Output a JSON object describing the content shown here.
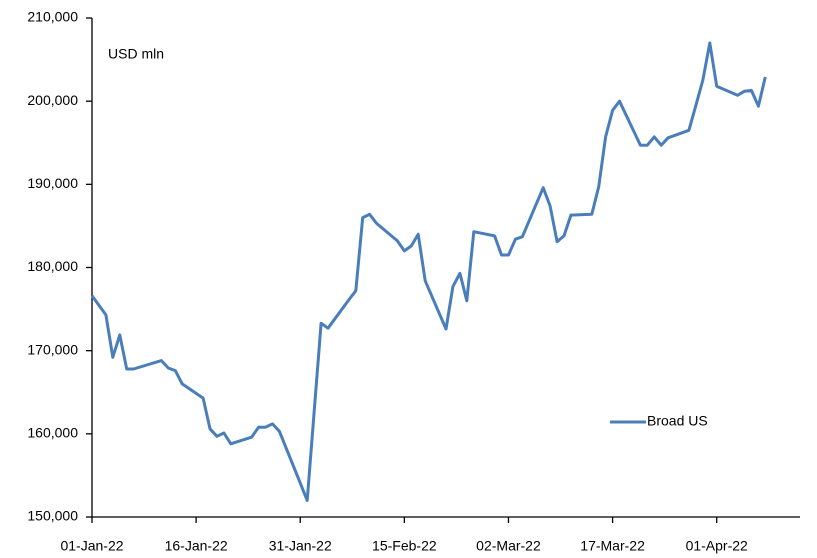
{
  "chart_data": {
    "type": "line",
    "annotations": [
      "USD mln"
    ],
    "x": [
      "01-Jan-22",
      "03-Jan-22",
      "04-Jan-22",
      "05-Jan-22",
      "06-Jan-22",
      "07-Jan-22",
      "11-Jan-22",
      "12-Jan-22",
      "13-Jan-22",
      "14-Jan-22",
      "17-Jan-22",
      "18-Jan-22",
      "19-Jan-22",
      "20-Jan-22",
      "21-Jan-22",
      "24-Jan-22",
      "25-Jan-22",
      "26-Jan-22",
      "27-Jan-22",
      "28-Jan-22",
      "31-Jan-22",
      "01-Feb-22",
      "03-Feb-22",
      "04-Feb-22",
      "07-Feb-22",
      "08-Feb-22",
      "09-Feb-22",
      "10-Feb-22",
      "11-Feb-22",
      "14-Feb-22",
      "15-Feb-22",
      "16-Feb-22",
      "17-Feb-22",
      "18-Feb-22",
      "21-Feb-22",
      "22-Feb-22",
      "23-Feb-22",
      "24-Feb-22",
      "25-Feb-22",
      "28-Feb-22",
      "01-Mar-22",
      "02-Mar-22",
      "03-Mar-22",
      "04-Mar-22",
      "07-Mar-22",
      "08-Mar-22",
      "09-Mar-22",
      "10-Mar-22",
      "11-Mar-22",
      "14-Mar-22",
      "15-Mar-22",
      "16-Mar-22",
      "17-Mar-22",
      "18-Mar-22",
      "21-Mar-22",
      "22-Mar-22",
      "23-Mar-22",
      "24-Mar-22",
      "25-Mar-22",
      "28-Mar-22",
      "29-Mar-22",
      "30-Mar-22",
      "31-Mar-22",
      "01-Apr-22",
      "04-Apr-22",
      "05-Apr-22",
      "06-Apr-22",
      "07-Apr-22",
      "08-Apr-22"
    ],
    "series": [
      {
        "name": "Broad US",
        "color": "#4a7ebb",
        "values": [
          176600,
          174300,
          169200,
          171900,
          167800,
          167800,
          168800,
          167900,
          167600,
          166000,
          164300,
          160600,
          159700,
          160100,
          158800,
          159600,
          160800,
          160800,
          161200,
          160300,
          154100,
          152000,
          173300,
          172700,
          176100,
          177200,
          186000,
          186400,
          185300,
          183200,
          182000,
          182600,
          184000,
          178400,
          172600,
          177700,
          179300,
          176000,
          184300,
          183800,
          181500,
          181500,
          183400,
          183700,
          189600,
          187400,
          183100,
          183800,
          186300,
          186400,
          189700,
          195700,
          198900,
          200000,
          194700,
          194700,
          195700,
          194700,
          195600,
          196500,
          199500,
          202500,
          207000,
          201800,
          200700,
          201200,
          201300,
          199400,
          202900
        ]
      }
    ],
    "xlim": [
      "01-Jan-22",
      "13-Apr-22"
    ],
    "xticks": [
      "01-Jan-22",
      "16-Jan-22",
      "31-Jan-22",
      "15-Feb-22",
      "02-Mar-22",
      "17-Mar-22",
      "01-Apr-22"
    ],
    "ylim": [
      150000,
      210000
    ],
    "yticks": [
      {
        "value": 150000,
        "label": "150,000"
      },
      {
        "value": 160000,
        "label": "160,000"
      },
      {
        "value": 170000,
        "label": "170,000"
      },
      {
        "value": 180000,
        "label": "180,000"
      },
      {
        "value": 190000,
        "label": "190,000"
      },
      {
        "value": 200000,
        "label": "200,000"
      },
      {
        "value": 210000,
        "label": "210,000"
      }
    ]
  }
}
